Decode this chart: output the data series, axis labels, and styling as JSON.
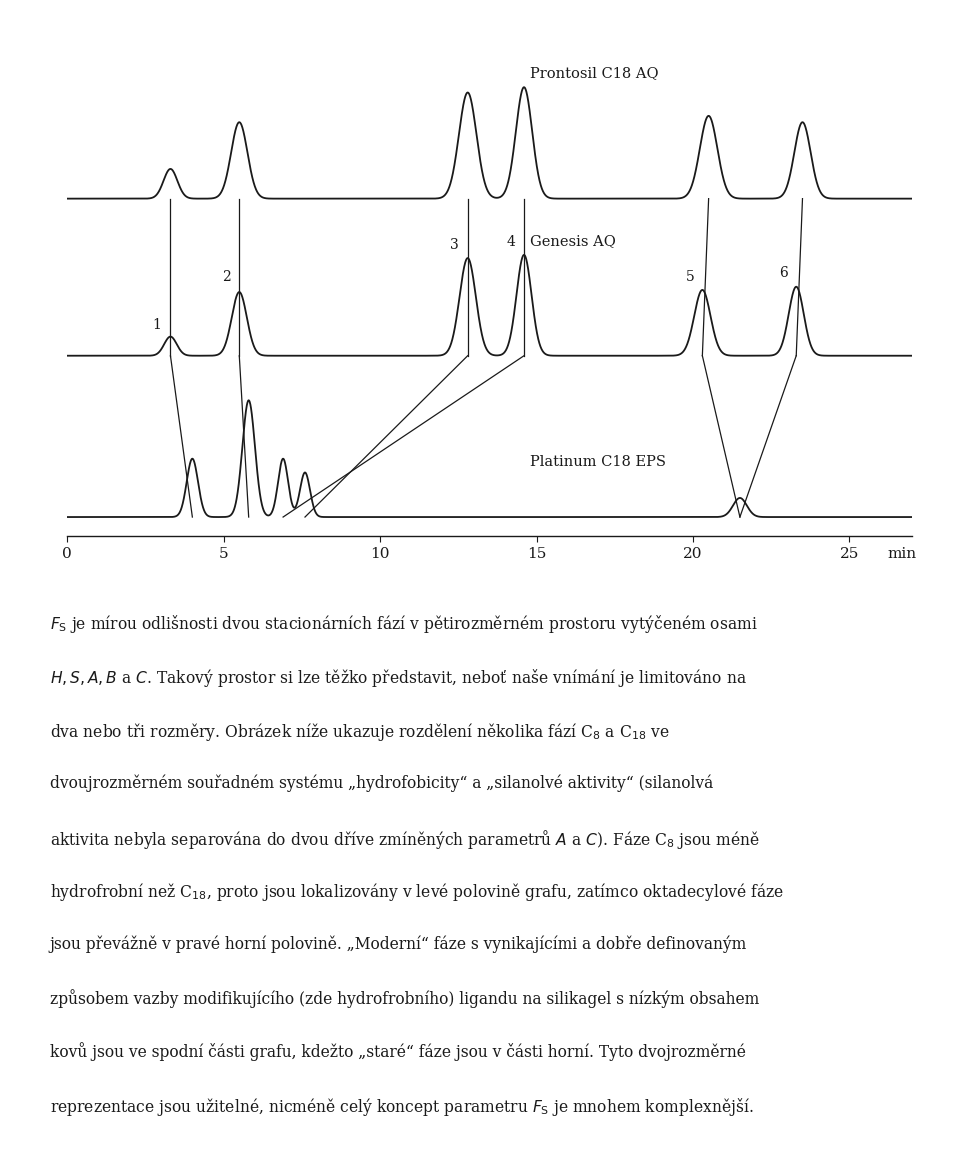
{
  "title_label1": "Prontosil C18 AQ",
  "title_label2": "Genesis AQ",
  "title_label3": "Platinum C18 EPS",
  "xlabel": "min",
  "xticks": [
    0,
    5,
    10,
    15,
    20,
    25
  ],
  "background_color": "#ffffff",
  "line_color": "#1a1a1a",
  "text_color": "#1a1a1a",
  "line1": "$\\it{F}_{\\rm{S}}$ je mírou odlišnosti dvou stacionárních fází v pětirozměrném prostoru vytýčeném osami",
  "line2": "$\\it{H, S, A, B}$ a $\\it{C}$. Takový prostor si lze těžko představit, neboť naše vnímání je limitováno na",
  "line3": "dva nebo tři rozměry. Obrázek níže ukazuje rozdělení několika fází C$_{8}$ a C$_{18}$ ve",
  "line4": "dvoujrozměrném souřadném systému „hydrofobicity“ a „silanolvé aktivity“ (silanolvá",
  "line5": "aktivita nebyla separována do dvou dříve zmíněných parametrů $\\it{A}$ a $\\it{C}$). Fáze C$_{8}$ jsou méně",
  "line6": "hydrofrobní než C$_{18}$, proto jsou lokalizovány v levé polovině grafu, zatímco oktadecylové fáze",
  "line7": "jsou převážně v pravé horní polovině. „Moderní“ fáze s vynikajícími a dobře definovaným",
  "line8": "způsobem vazby modifikujícího (zde hydrofrobního) ligandu na silikagel s nízkým obsahem",
  "line9": "kovů jsou ve spodní části grafu, kdežto „staré“ fáze jsou v části horní. Tyto dvojrozměrné",
  "line10": "reprezentace jsou užitelné, nicméně celý koncept parametru $\\it{F}_{\\rm{S}}$ je mnohem komplexnější."
}
